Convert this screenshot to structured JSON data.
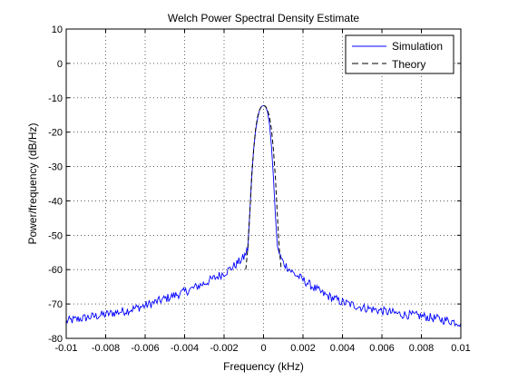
{
  "chart_data": {
    "type": "line",
    "title": "Welch Power Spectral Density Estimate",
    "xlabel": "Frequency (kHz)",
    "ylabel": "Power/frequency (dB/Hz)",
    "xlim": [
      -0.01,
      0.01
    ],
    "ylim": [
      -80,
      10
    ],
    "xticks": [
      -0.01,
      -0.008,
      -0.006,
      -0.004,
      -0.002,
      0,
      0.002,
      0.004,
      0.006,
      0.008,
      0.01
    ],
    "xtick_labels": [
      "-0.01",
      "-0.008",
      "-0.006",
      "-0.004",
      "-0.002",
      "0",
      "0.002",
      "0.004",
      "0.006",
      "0.008",
      "0.01"
    ],
    "yticks": [
      10,
      0,
      -10,
      -20,
      -30,
      -40,
      -50,
      -60,
      -70,
      -80
    ],
    "ytick_labels": [
      "10",
      "0",
      "-10",
      "-20",
      "-30",
      "-40",
      "-50",
      "-60",
      "-70",
      "-80"
    ],
    "grid": true,
    "legend_position": "top-right",
    "series": [
      {
        "name": "Simulation",
        "color": "#0000ff",
        "style": "solid",
        "x": [
          -0.01,
          -0.009,
          -0.008,
          -0.007,
          -0.006,
          -0.005,
          -0.004,
          -0.003,
          -0.002,
          -0.0015,
          -0.001,
          -0.0008,
          -0.0007,
          -0.0006,
          -0.0005,
          -0.0004,
          -0.0003,
          -0.0002,
          -0.0001,
          0,
          0.0001,
          0.0002,
          0.0003,
          0.0004,
          0.0005,
          0.0006,
          0.0007,
          0.0008,
          0.001,
          0.0015,
          0.002,
          0.003,
          0.004,
          0.005,
          0.006,
          0.007,
          0.008,
          0.009,
          0.01
        ],
        "y": [
          -75,
          -74,
          -73,
          -72,
          -70.5,
          -68.5,
          -66.5,
          -64,
          -61,
          -59,
          -56.5,
          -54,
          -44,
          -33,
          -25,
          -19.5,
          -16,
          -13.5,
          -12.5,
          -12.3,
          -12.5,
          -14,
          -17.5,
          -24,
          -33,
          -44,
          -53,
          -55.5,
          -58,
          -61,
          -63,
          -67,
          -69.5,
          -71,
          -72,
          -73,
          -73.5,
          -74.5,
          -75.5
        ]
      },
      {
        "name": "Theory",
        "color": "#000000",
        "style": "dashed",
        "x": [
          -0.0009,
          -0.0008,
          -0.0007,
          -0.0006,
          -0.0005,
          -0.0004,
          -0.0003,
          -0.0002,
          -0.0001,
          0,
          0.0001,
          0.0002,
          0.0003,
          0.0004,
          0.0005,
          0.0006,
          0.0007,
          0.0008,
          0.0009
        ],
        "y": [
          -60,
          -54,
          -44,
          -33,
          -25,
          -19,
          -15.5,
          -13.5,
          -12.5,
          -12.2,
          -12.5,
          -13.5,
          -15.5,
          -19,
          -25,
          -33,
          -44,
          -54,
          -60
        ]
      }
    ]
  }
}
